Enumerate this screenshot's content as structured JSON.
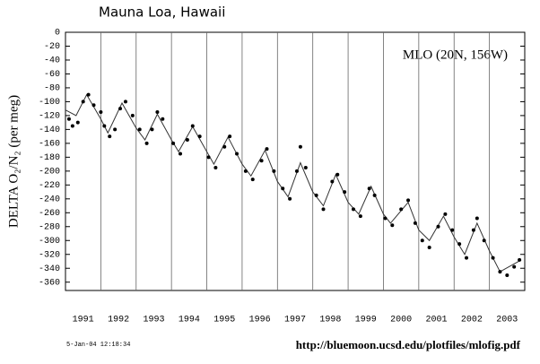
{
  "chart_data": {
    "type": "line",
    "title": "Mauna Loa, Hawaii",
    "annotation": "MLO (20N, 156W)",
    "y_label": "DELTA O₂/N₂ (per meg)",
    "timestamp": "5-Jan-04 12:18:34",
    "url": "http://bluemoon.ucsd.edu/plotfiles/mlofig.pdf",
    "xlim": [
      1991,
      2004
    ],
    "ylim": [
      -372,
      0
    ],
    "yticks": [
      0,
      -20,
      -40,
      -60,
      -80,
      -100,
      -120,
      -140,
      -160,
      -180,
      -200,
      -220,
      -240,
      -260,
      -280,
      -300,
      -320,
      -340,
      -360
    ],
    "xticks": [
      {
        "value": 1991.5,
        "label": "1991"
      },
      {
        "value": 1992.5,
        "label": "1992"
      },
      {
        "value": 1993.5,
        "label": "1993"
      },
      {
        "value": 1994.5,
        "label": "1994"
      },
      {
        "value": 1995.5,
        "label": "1995"
      },
      {
        "value": 1996.5,
        "label": "1996"
      },
      {
        "value": 1997.5,
        "label": "1997"
      },
      {
        "value": 1998.5,
        "label": "1998"
      },
      {
        "value": 1999.5,
        "label": "1999"
      },
      {
        "value": 2000.5,
        "label": "2000"
      },
      {
        "value": 2001.5,
        "label": "2001"
      },
      {
        "value": 2002.5,
        "label": "2002"
      },
      {
        "value": 2003.5,
        "label": "2003"
      }
    ],
    "grid_x": [
      1992,
      1993,
      1994,
      1995,
      1996,
      1997,
      1998,
      1999,
      2000,
      2001,
      2002,
      2003
    ],
    "series": [
      {
        "type": "line",
        "color": "#333333",
        "x": [
          1991.0,
          1991.3,
          1991.6,
          1992.0,
          1992.2,
          1992.6,
          1993.0,
          1993.25,
          1993.6,
          1994.0,
          1994.2,
          1994.6,
          1995.0,
          1995.2,
          1995.6,
          1996.0,
          1996.25,
          1996.65,
          1997.0,
          1997.3,
          1997.65,
          1998.0,
          1998.3,
          1998.65,
          1999.0,
          1999.3,
          1999.65,
          2000.0,
          2000.2,
          2000.7,
          2001.0,
          2001.3,
          2001.7,
          2002.0,
          2002.3,
          2002.65,
          2003.0,
          2003.3,
          2003.9
        ],
        "values": [
          -112,
          -120,
          -90,
          -125,
          -145,
          -102,
          -138,
          -155,
          -118,
          -155,
          -172,
          -136,
          -172,
          -190,
          -151,
          -190,
          -207,
          -170,
          -215,
          -237,
          -188,
          -230,
          -250,
          -205,
          -245,
          -262,
          -222,
          -262,
          -275,
          -245,
          -285,
          -300,
          -265,
          -295,
          -320,
          -275,
          -315,
          -345,
          -328
        ]
      },
      {
        "type": "scatter",
        "color": "#000000",
        "x": [
          1991.1,
          1991.2,
          1991.35,
          1991.5,
          1991.65,
          1991.8,
          1992.0,
          1992.1,
          1992.25,
          1992.4,
          1992.55,
          1992.7,
          1992.9,
          1993.1,
          1993.3,
          1993.45,
          1993.6,
          1993.75,
          1994.05,
          1994.25,
          1994.45,
          1994.6,
          1994.8,
          1995.05,
          1995.25,
          1995.5,
          1995.65,
          1995.85,
          1996.1,
          1996.3,
          1996.55,
          1996.7,
          1996.9,
          1997.15,
          1997.35,
          1997.55,
          1997.65,
          1997.8,
          1998.1,
          1998.3,
          1998.55,
          1998.7,
          1998.9,
          1999.15,
          1999.35,
          1999.6,
          1999.75,
          2000.05,
          2000.25,
          2000.5,
          2000.7,
          2000.9,
          2001.1,
          2001.3,
          2001.55,
          2001.75,
          2001.95,
          2002.15,
          2002.35,
          2002.55,
          2002.65,
          2002.85,
          2003.1,
          2003.3,
          2003.5,
          2003.7,
          2003.85
        ],
        "values": [
          -125,
          -135,
          -130,
          -100,
          -90,
          -105,
          -115,
          -135,
          -150,
          -140,
          -110,
          -100,
          -120,
          -140,
          -160,
          -140,
          -115,
          -125,
          -160,
          -175,
          -155,
          -135,
          -150,
          -180,
          -195,
          -165,
          -150,
          -175,
          -200,
          -212,
          -185,
          -168,
          -200,
          -225,
          -240,
          -200,
          -165,
          -195,
          -235,
          -255,
          -215,
          -205,
          -230,
          -255,
          -265,
          -225,
          -235,
          -268,
          -278,
          -255,
          -242,
          -275,
          -300,
          -310,
          -280,
          -262,
          -285,
          -305,
          -325,
          -285,
          -268,
          -300,
          -325,
          -345,
          -350,
          -338,
          -328
        ]
      }
    ]
  }
}
